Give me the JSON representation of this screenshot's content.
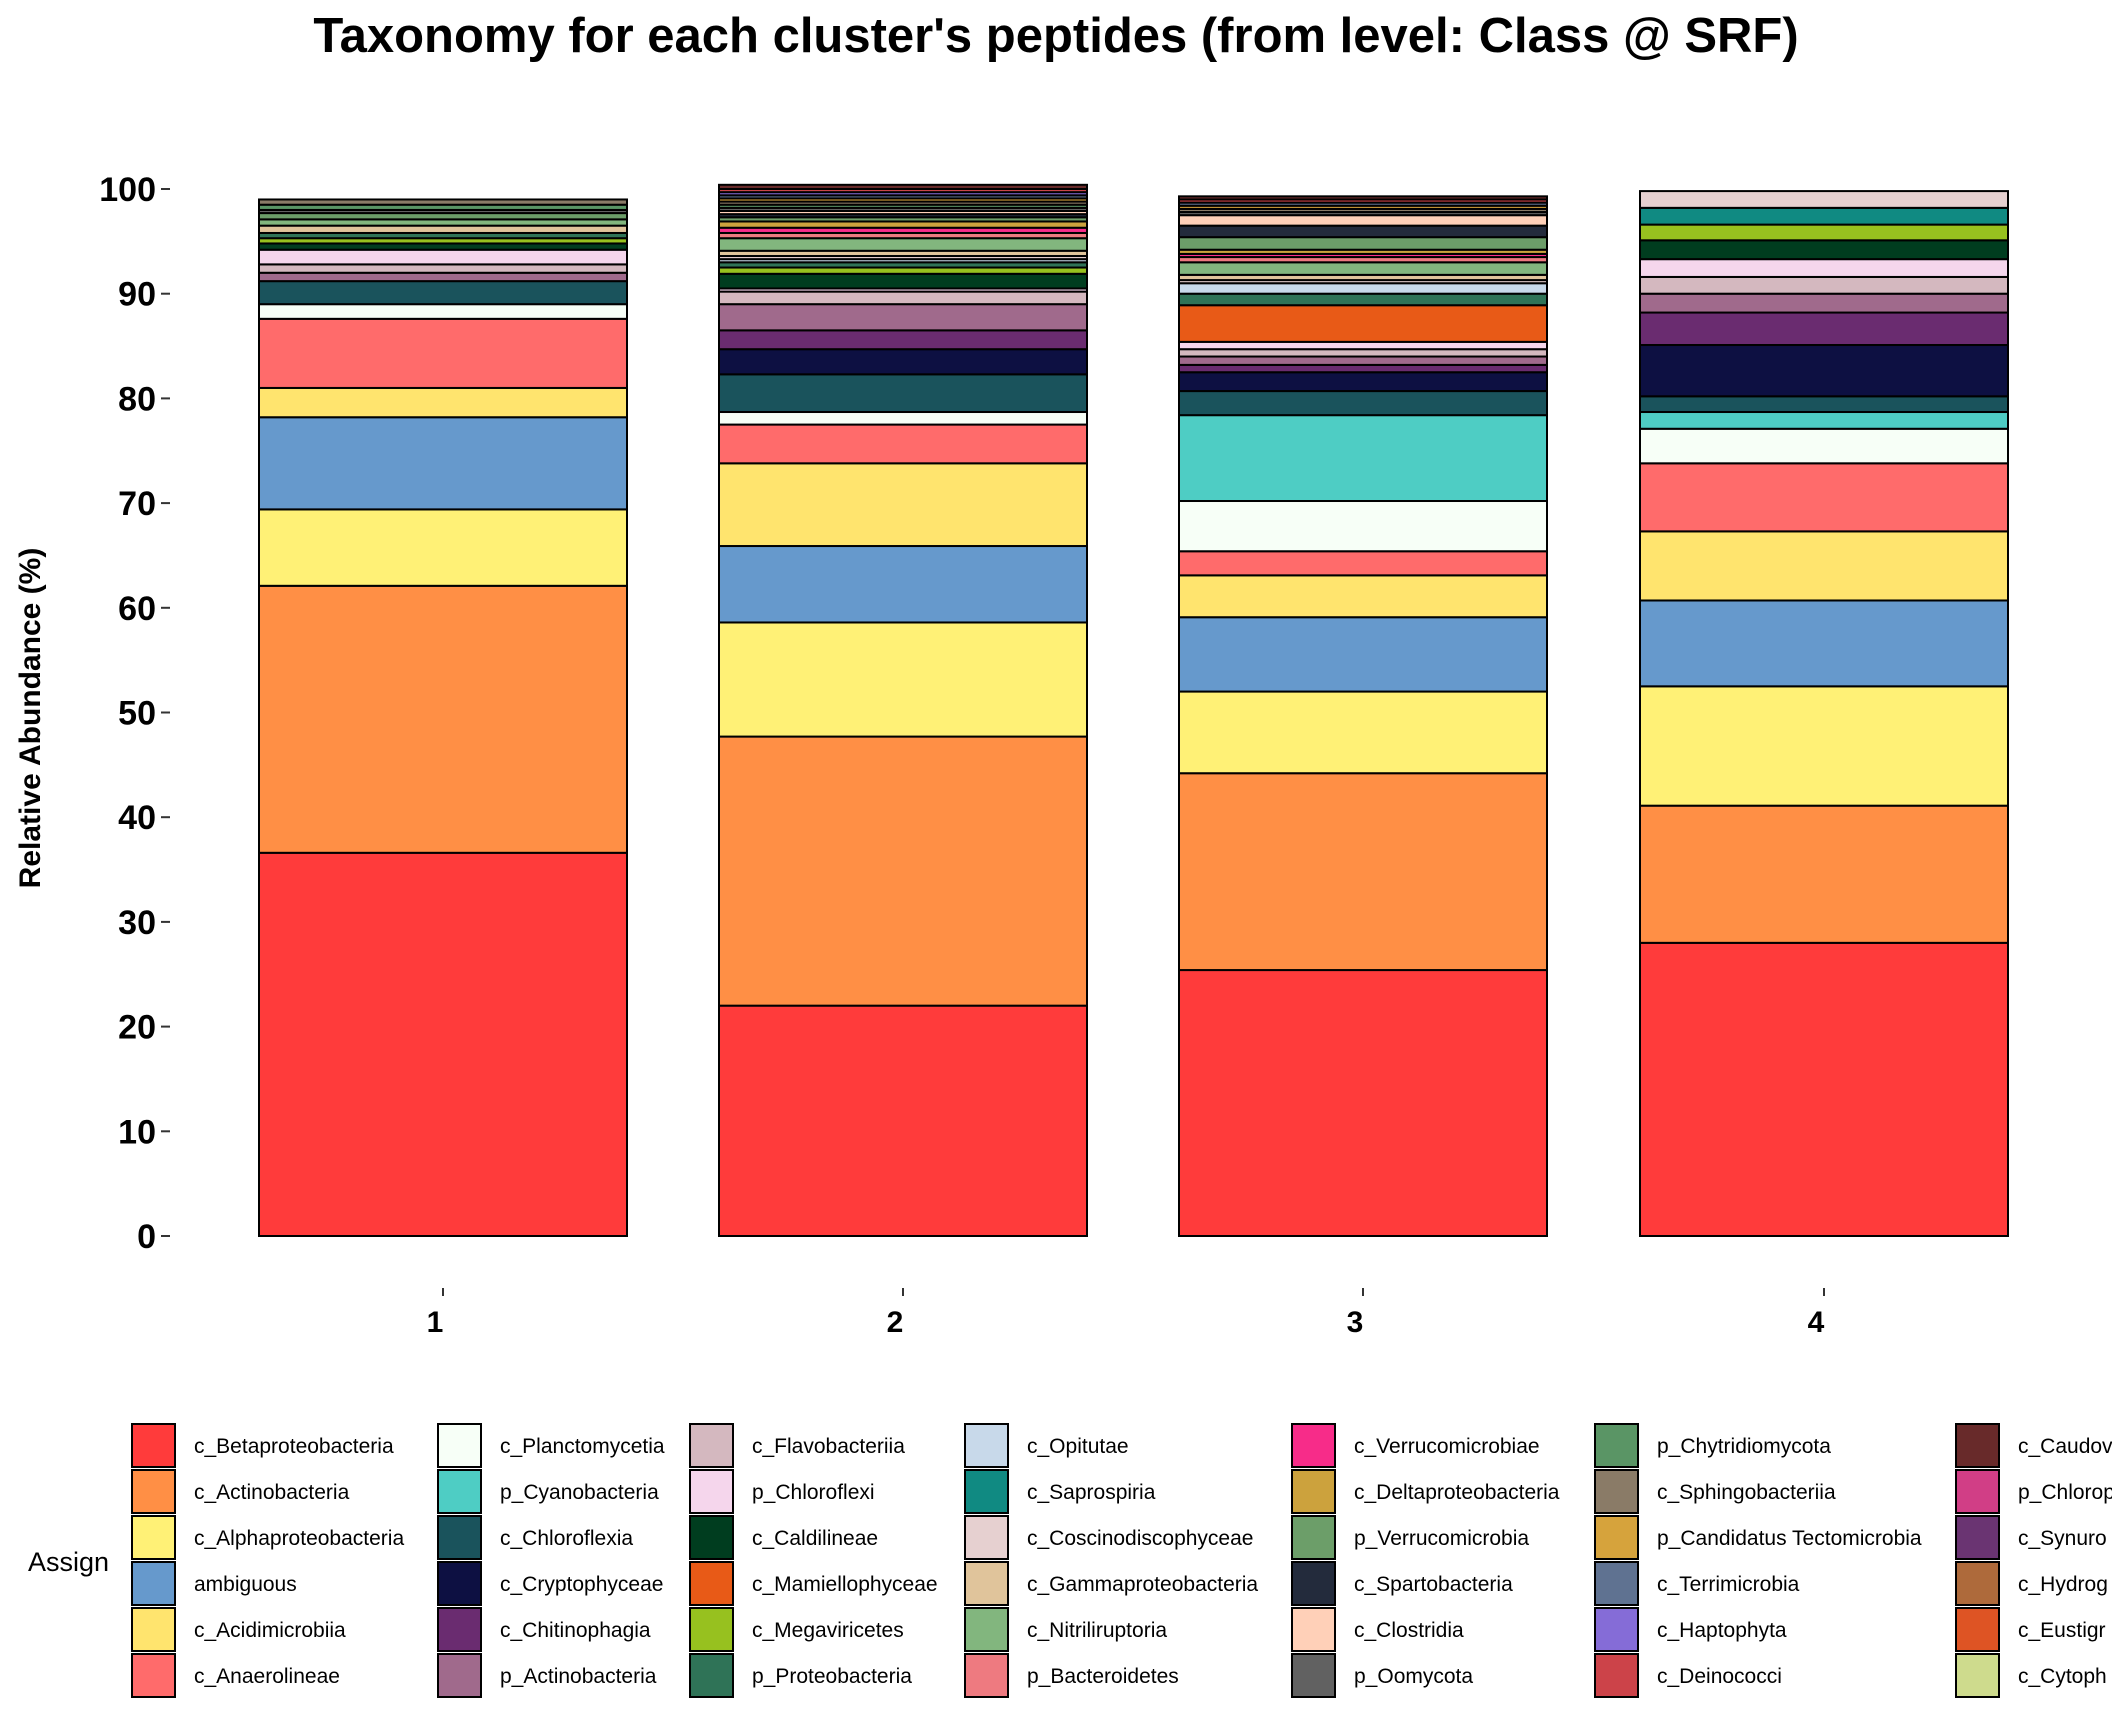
{
  "chart_data": {
    "type": "bar",
    "stacked": true,
    "title": "Taxonomy for each cluster's peptides (from level: Class @ SRF)",
    "xlabel": "",
    "ylabel": "Relative Abundance (%)",
    "ylim": [
      0,
      100
    ],
    "yticks": [
      "0",
      "10",
      "20",
      "30",
      "40",
      "50",
      "60",
      "70",
      "80",
      "90",
      "100"
    ],
    "categories": [
      "1",
      "2",
      "3",
      "4"
    ],
    "legend_title": "Assign",
    "legend_position": "bottom",
    "legend": [
      {
        "label": "c_Betaproteobacteria",
        "color": "#FF3B3B"
      },
      {
        "label": "c_Actinobacteria",
        "color": "#FF8F45"
      },
      {
        "label": "c_Alphaproteobacteria",
        "color": "#FFF176"
      },
      {
        "label": "ambiguous",
        "color": "#6699CC"
      },
      {
        "label": "c_Acidimicrobiia",
        "color": "#FFE46E"
      },
      {
        "label": "c_Anaerolineae",
        "color": "#FF6B6B"
      },
      {
        "label": "c_Planctomycetia",
        "color": "#F7FFF7"
      },
      {
        "label": "p_Cyanobacteria",
        "color": "#4ECDC4"
      },
      {
        "label": "c_Chloroflexia",
        "color": "#1A535C"
      },
      {
        "label": "c_Cryptophyceae",
        "color": "#0D1042"
      },
      {
        "label": "c_Chitinophagia",
        "color": "#6A2C70"
      },
      {
        "label": "p_Actinobacteria",
        "color": "#A06A8C"
      },
      {
        "label": "c_Flavobacteriia",
        "color": "#D4B8BF"
      },
      {
        "label": "p_Chloroflexi",
        "color": "#F5D6EC"
      },
      {
        "label": "c_Caldilineae",
        "color": "#003D1F"
      },
      {
        "label": "c_Mamiellophyceae",
        "color": "#E85A17"
      },
      {
        "label": "c_Megaviricetes",
        "color": "#97C11F"
      },
      {
        "label": "p_Proteobacteria",
        "color": "#2F7357"
      },
      {
        "label": "c_Opitutae",
        "color": "#C8D9EA"
      },
      {
        "label": "c_Saprospiria",
        "color": "#108A82"
      },
      {
        "label": "c_Coscinodiscophyceae",
        "color": "#E6D0D0"
      },
      {
        "label": "c_Gammaproteobacteria",
        "color": "#E0C49B"
      },
      {
        "label": "c_Nitriliruptoria",
        "color": "#82B67E"
      },
      {
        "label": "p_Bacteroidetes",
        "color": "#EE7A80"
      },
      {
        "label": "c_Verrucomicrobiae",
        "color": "#F72C89"
      },
      {
        "label": "c_Deltaproteobacteria",
        "color": "#CCA23D"
      },
      {
        "label": "p_Verrucomicrobia",
        "color": "#6C9E69"
      },
      {
        "label": "c_Spartobacteria",
        "color": "#232B3C"
      },
      {
        "label": "c_Clostridia",
        "color": "#FFD0B8"
      },
      {
        "label": "p_Oomycota",
        "color": "#616161"
      },
      {
        "label": "p_Chytridiomycota",
        "color": "#5A9565"
      },
      {
        "label": "c_Sphingobacteriia",
        "color": "#8A7B67"
      },
      {
        "label": "p_Candidatus Tectomicrobia",
        "color": "#D6A33C"
      },
      {
        "label": "c_Terrimicrobia",
        "color": "#5F7291"
      },
      {
        "label": "c_Haptophyta",
        "color": "#856CD7"
      },
      {
        "label": "c_Deinococci",
        "color": "#CC4349"
      },
      {
        "label": "c_Caudov",
        "color": "#682A2A"
      },
      {
        "label": "p_Chlorop",
        "color": "#D13E86"
      },
      {
        "label": "c_Synuro",
        "color": "#6A3472"
      },
      {
        "label": "c_Hydrog",
        "color": "#AE6A3B"
      },
      {
        "label": "c_Eustigr",
        "color": "#DE5424"
      },
      {
        "label": "c_Cytoph",
        "color": "#CEDB8D"
      }
    ],
    "series": [
      {
        "name": "c_Betaproteobacteria",
        "values": [
          36.6,
          22.0,
          25.4,
          28.0
        ]
      },
      {
        "name": "c_Actinobacteria",
        "values": [
          25.5,
          25.7,
          18.8,
          13.1
        ]
      },
      {
        "name": "c_Alphaproteobacteria",
        "values": [
          7.3,
          10.9,
          7.8,
          11.4
        ]
      },
      {
        "name": "ambiguous",
        "values": [
          8.8,
          7.3,
          7.1,
          8.2
        ]
      },
      {
        "name": "c_Acidimicrobiia",
        "values": [
          2.8,
          7.9,
          4.0,
          6.6
        ]
      },
      {
        "name": "c_Anaerolineae",
        "values": [
          6.6,
          3.7,
          2.3,
          6.5
        ]
      },
      {
        "name": "c_Planctomycetia",
        "values": [
          1.4,
          1.2,
          4.8,
          3.3
        ]
      },
      {
        "name": "p_Cyanobacteria",
        "values": [
          0,
          0,
          8.2,
          1.6
        ]
      },
      {
        "name": "c_Chloroflexia",
        "values": [
          2.2,
          3.6,
          2.3,
          1.5
        ]
      },
      {
        "name": "c_Cryptophyceae",
        "values": [
          0,
          2.4,
          1.8,
          4.9
        ]
      },
      {
        "name": "c_Chitinophagia",
        "values": [
          0,
          1.8,
          0.7,
          3.1
        ]
      },
      {
        "name": "p_Actinobacteria",
        "values": [
          0.8,
          2.5,
          0.8,
          1.8
        ]
      },
      {
        "name": "c_Flavobacteriia",
        "values": [
          0.8,
          1.2,
          0.7,
          1.6
        ]
      },
      {
        "name": "p_Chloroflexi",
        "values": [
          1.4,
          0.3,
          0.7,
          1.7
        ]
      },
      {
        "name": "c_Caldilineae",
        "values": [
          0.6,
          1.4,
          0,
          1.8
        ]
      },
      {
        "name": "c_Mamiellophyceae",
        "values": [
          0,
          0,
          3.5,
          0
        ]
      },
      {
        "name": "c_Megaviricetes",
        "values": [
          0.5,
          0.6,
          0,
          1.5
        ]
      },
      {
        "name": "p_Proteobacteria",
        "values": [
          0.5,
          0.5,
          1.1,
          0
        ]
      },
      {
        "name": "c_Opitutae",
        "values": [
          0,
          0.3,
          1.0,
          0
        ]
      },
      {
        "name": "c_Saprospiria",
        "values": [
          0,
          0,
          0,
          1.6
        ]
      },
      {
        "name": "c_Coscinodiscophyceae",
        "values": [
          0,
          0.3,
          0.3,
          1.6
        ]
      },
      {
        "name": "c_Gammaproteobacteria",
        "values": [
          0.7,
          0.5,
          0.5,
          0
        ]
      },
      {
        "name": "c_Nitriliruptoria",
        "values": [
          0.6,
          1.2,
          1.2,
          0
        ]
      },
      {
        "name": "p_Bacteroidetes",
        "values": [
          0,
          0.5,
          0.5,
          0
        ]
      },
      {
        "name": "c_Verrucomicrobiae",
        "values": [
          0,
          0.5,
          0.3,
          0
        ]
      },
      {
        "name": "c_Deltaproteobacteria",
        "values": [
          0,
          0.6,
          0.4,
          0
        ]
      },
      {
        "name": "p_Verrucomicrobia",
        "values": [
          0.6,
          0.4,
          1.2,
          0
        ]
      },
      {
        "name": "c_Spartobacteria",
        "values": [
          0,
          0.3,
          1.1,
          0
        ]
      },
      {
        "name": "c_Clostridia",
        "values": [
          0,
          0.3,
          1.0,
          0
        ]
      },
      {
        "name": "p_Oomycota",
        "values": [
          0.3,
          0.3,
          0.3,
          0
        ]
      },
      {
        "name": "p_Chytridiomycota",
        "values": [
          0.5,
          0.3,
          0,
          0
        ]
      },
      {
        "name": "c_Sphingobacteriia",
        "values": [
          0.5,
          0.3,
          0.3,
          0
        ]
      },
      {
        "name": "p_Candidatus Tectomicrobia",
        "values": [
          0,
          0.3,
          0.3,
          0
        ]
      },
      {
        "name": "c_Terrimicrobia",
        "values": [
          0,
          0.3,
          0.3,
          0
        ]
      },
      {
        "name": "c_Haptophyta",
        "values": [
          0,
          0.3,
          0,
          0
        ]
      },
      {
        "name": "c_Deinococci",
        "values": [
          0,
          0.3,
          0.3,
          0
        ]
      },
      {
        "name": "c_Caudov",
        "values": [
          0,
          0.4,
          0.3,
          0
        ]
      },
      {
        "name": "p_Chlorop",
        "values": [
          0,
          0,
          0,
          0
        ]
      },
      {
        "name": "c_Synuro",
        "values": [
          0,
          0,
          0,
          0
        ]
      },
      {
        "name": "c_Hydrog",
        "values": [
          0,
          0,
          0,
          0
        ]
      },
      {
        "name": "c_Eustigr",
        "values": [
          0,
          0,
          0,
          0
        ]
      },
      {
        "name": "c_Cytoph",
        "values": [
          0,
          0,
          0,
          0
        ]
      }
    ]
  }
}
